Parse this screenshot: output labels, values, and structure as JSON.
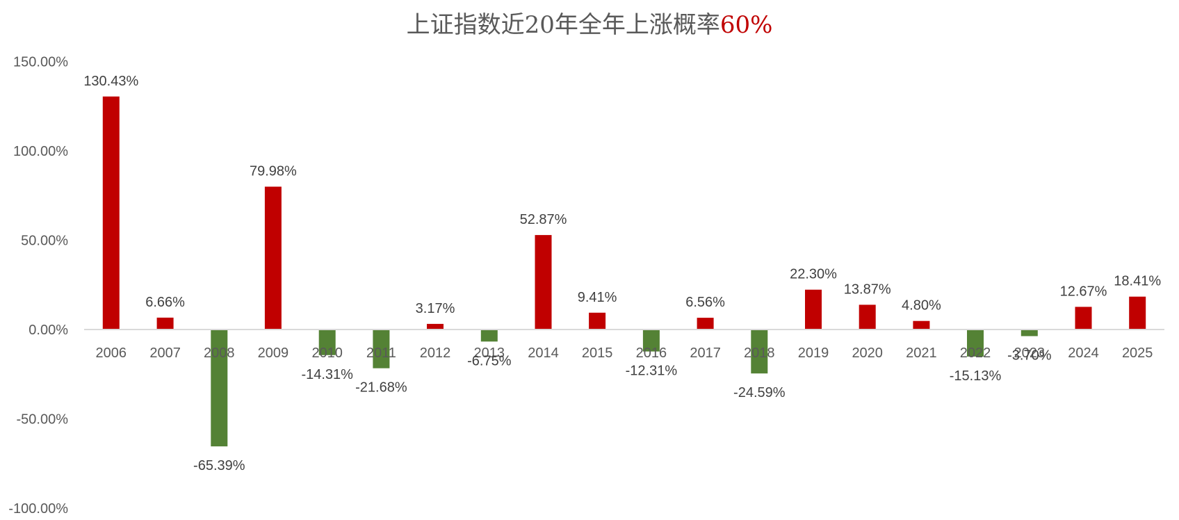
{
  "title": {
    "main": "上证指数近20年全年上涨概率",
    "highlight": "60%",
    "main_color": "#595959",
    "highlight_color": "#c00000"
  },
  "colors": {
    "positive": "#c00000",
    "negative": "#548235",
    "axis_line": "#d9d9d9",
    "tick_text": "#595959",
    "label_text": "#404040"
  },
  "chart_data": {
    "type": "bar",
    "title": "上证指数近20年全年上涨概率60%",
    "xlabel": "",
    "ylabel": "",
    "categories": [
      "2006",
      "2007",
      "2008",
      "2009",
      "2010",
      "2011",
      "2012",
      "2013",
      "2014",
      "2015",
      "2016",
      "2017",
      "2018",
      "2019",
      "2020",
      "2021",
      "2022",
      "2023",
      "2024",
      "2025"
    ],
    "values": [
      130.43,
      6.66,
      -65.39,
      79.98,
      -14.31,
      -21.68,
      3.17,
      -6.75,
      52.87,
      9.41,
      -12.31,
      6.56,
      -24.59,
      22.3,
      13.87,
      4.8,
      -15.13,
      -3.7,
      12.67,
      18.41
    ],
    "data_labels": [
      "130.43%",
      "6.66%",
      "-65.39%",
      "79.98%",
      "-14.31%",
      "-21.68%",
      "3.17%",
      "-6.75%",
      "52.87%",
      "9.41%",
      "-12.31%",
      "6.56%",
      "-24.59%",
      "22.30%",
      "13.87%",
      "4.80%",
      "-15.13%",
      "-3.70%",
      "12.67%",
      "18.41%"
    ],
    "y_ticks": [
      "150.00%",
      "100.00%",
      "50.00%",
      "0.00%",
      "-50.00%",
      "-100.00%"
    ],
    "y_tick_values": [
      150,
      100,
      50,
      0,
      -50,
      -100
    ],
    "ylim": [
      -100,
      150
    ],
    "grid": false,
    "legend": "none",
    "unit": "%"
  }
}
